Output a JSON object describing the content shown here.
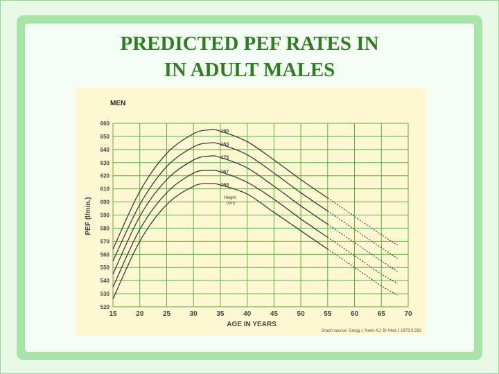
{
  "slide": {
    "title_line1": "PREDICTED PEF RATES IN",
    "title_line2": "IN ADULT MALES"
  },
  "colors": {
    "title": "#2e7d1e",
    "chart_bg": "#fdf8d2",
    "grid": "#5cae3e",
    "curve": "#3a3a3a",
    "panel": "#a8e4a8"
  },
  "chart_data": {
    "type": "line",
    "title": "MEN",
    "xlabel": "AGE IN YEARS",
    "ylabel": "PEF (l/min.)",
    "xlim": [
      15,
      70
    ],
    "ylim": [
      520,
      660
    ],
    "x_ticks": [
      15,
      20,
      25,
      30,
      35,
      40,
      45,
      50,
      55,
      60,
      65,
      70
    ],
    "y_ticks": [
      520,
      530,
      540,
      550,
      560,
      570,
      580,
      590,
      600,
      610,
      620,
      630,
      640,
      650,
      660
    ],
    "grid": true,
    "legend_title": "Height",
    "legend_unit": "(cm)",
    "source": "Graph source: Gregg I, Nunn AJ. Br Med J 1973;3:282",
    "dashed_after_x": 55,
    "series": [
      {
        "name": "190",
        "x": [
          15,
          20,
          25,
          30,
          33,
          35,
          40,
          45,
          50,
          55,
          60,
          65,
          68
        ],
        "values": [
          564,
          608,
          637,
          652,
          655,
          654,
          646,
          632,
          617,
          603,
          589,
          575,
          567
        ]
      },
      {
        "name": "183",
        "x": [
          15,
          20,
          25,
          30,
          33,
          35,
          40,
          45,
          50,
          55,
          60,
          65,
          68
        ],
        "values": [
          555,
          598,
          627,
          642,
          645,
          644,
          636,
          622,
          607,
          593,
          579,
          565,
          557
        ]
      },
      {
        "name": "175",
        "x": [
          15,
          20,
          25,
          30,
          33,
          35,
          40,
          45,
          50,
          55,
          60,
          65,
          68
        ],
        "values": [
          545,
          589,
          617,
          632,
          635,
          634,
          626,
          612,
          597,
          583,
          569,
          555,
          547
        ]
      },
      {
        "name": "167",
        "x": [
          15,
          20,
          25,
          30,
          33,
          35,
          40,
          45,
          50,
          55,
          60,
          65,
          68
        ],
        "values": [
          535,
          579,
          607,
          622,
          624,
          623,
          615,
          602,
          587,
          573,
          559,
          545,
          538
        ]
      },
      {
        "name": "160",
        "x": [
          15,
          20,
          25,
          30,
          33,
          35,
          40,
          45,
          50,
          55,
          60,
          65,
          68
        ],
        "values": [
          526,
          570,
          598,
          612,
          614,
          613,
          606,
          592,
          578,
          564,
          550,
          536,
          529
        ]
      }
    ]
  }
}
